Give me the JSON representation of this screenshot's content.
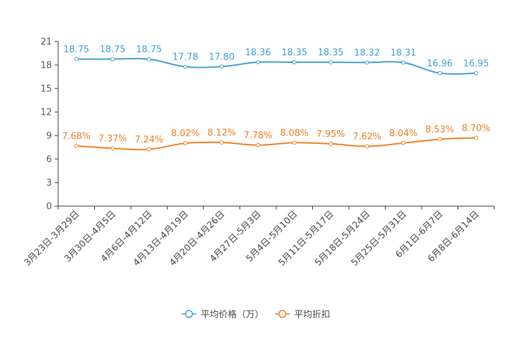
{
  "chart_data": {
    "type": "line",
    "categories": [
      "3月23日-3月29日",
      "3月30日-4月5日",
      "4月6日-4月12日",
      "4月13日-4月19日",
      "4月20日-4月26日",
      "4月27日-5月3日",
      "5月4日-5月10日",
      "5月11日-5月17日",
      "5月18日-5月24日",
      "5月25日-5月31日",
      "6月1日-6月7日",
      "6月8日-6月14日"
    ],
    "ylim": [
      0,
      21
    ],
    "yticks": [
      0,
      3,
      6,
      9,
      12,
      15,
      18,
      21
    ],
    "series": [
      {
        "name": "平均价格（万）",
        "color": "#3b9fd0",
        "values": [
          18.75,
          18.75,
          18.75,
          17.78,
          17.8,
          18.36,
          18.35,
          18.35,
          18.32,
          18.31,
          16.96,
          16.95
        ],
        "labels": [
          "18.75",
          "18.75",
          "18.75",
          "17.78",
          "17.80",
          "18.36",
          "18.35",
          "18.35",
          "18.32",
          "18.31",
          "16.96",
          "16.95"
        ]
      },
      {
        "name": "平均折扣",
        "color": "#f07c1e",
        "values": [
          7.68,
          7.37,
          7.24,
          8.02,
          8.12,
          7.78,
          8.08,
          7.95,
          7.62,
          8.04,
          8.53,
          8.7
        ],
        "labels": [
          "7.68%",
          "7.37%",
          "7.24%",
          "8.02%",
          "8.12%",
          "7.78%",
          "8.08%",
          "7.95%",
          "7.62%",
          "8.04%",
          "8.53%",
          "8.70%"
        ]
      }
    ],
    "legend_position": "bottom-center"
  }
}
